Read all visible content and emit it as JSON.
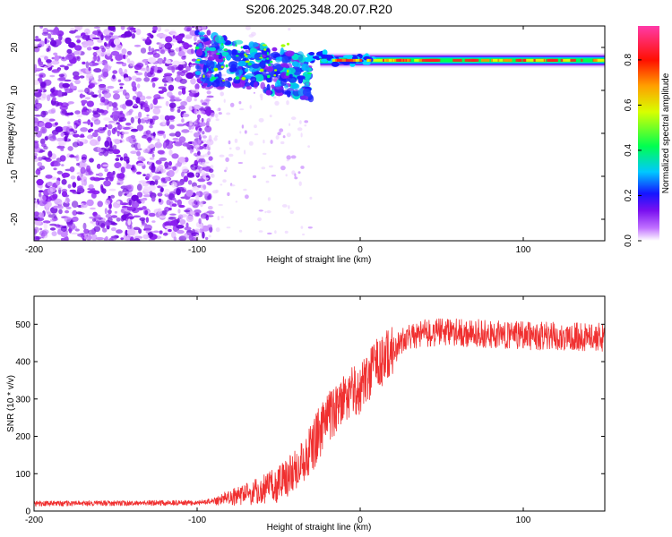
{
  "title": "S206.2025.348.20.07.R20",
  "chart_data": [
    {
      "type": "heatmap",
      "title": "S206.2025.348.20.07.R20",
      "xlabel": "Height of straight line (km)",
      "ylabel": "Frequency (Hz)",
      "xlim": [
        -200,
        150
      ],
      "ylim": [
        -25,
        25
      ],
      "xticks": [
        -200,
        -100,
        0,
        100
      ],
      "yticks": [
        20,
        10,
        0,
        -10,
        -20
      ],
      "colorbar": {
        "label": "Normalized spectral amplitude",
        "range": [
          0.0,
          0.95
        ],
        "ticks": [
          "0.0",
          "0.2",
          "0.4",
          "0.6",
          "0.8"
        ],
        "colors": [
          "#ffffff",
          "#8a1cf0",
          "#1010ff",
          "#00d4ff",
          "#00ff40",
          "#e6ff00",
          "#ff8000",
          "#ff0000",
          "#ff2fa0"
        ]
      },
      "features": {
        "noise_region_km": [
          -200,
          -100
        ],
        "scatter_band_km": [
          -100,
          -30
        ],
        "scatter_band_hz": [
          9,
          22
        ],
        "tone_line_km": [
          -30,
          150
        ],
        "tone_hz": 17,
        "tone_peak_amplitude": 0.85
      }
    },
    {
      "type": "line",
      "xlabel": "Height of straight line (km)",
      "ylabel": "SNR (10 * v/v)",
      "xlim": [
        -200,
        150
      ],
      "ylim": [
        0,
        575
      ],
      "xticks": [
        -200,
        -100,
        0,
        100
      ],
      "yticks": [
        0,
        100,
        200,
        300,
        400,
        500
      ],
      "series": [
        {
          "name": "SNR",
          "color": "#f03030",
          "trend": [
            [
              -200,
              20
            ],
            [
              -100,
              22
            ],
            [
              -90,
              28
            ],
            [
              -70,
              45
            ],
            [
              -50,
              70
            ],
            [
              -40,
              110
            ],
            [
              -30,
              170
            ],
            [
              -20,
              250
            ],
            [
              -10,
              300
            ],
            [
              0,
              330
            ],
            [
              10,
              390
            ],
            [
              20,
              430
            ],
            [
              30,
              470
            ],
            [
              50,
              480
            ],
            [
              100,
              470
            ],
            [
              150,
              465
            ]
          ]
        }
      ]
    }
  ]
}
